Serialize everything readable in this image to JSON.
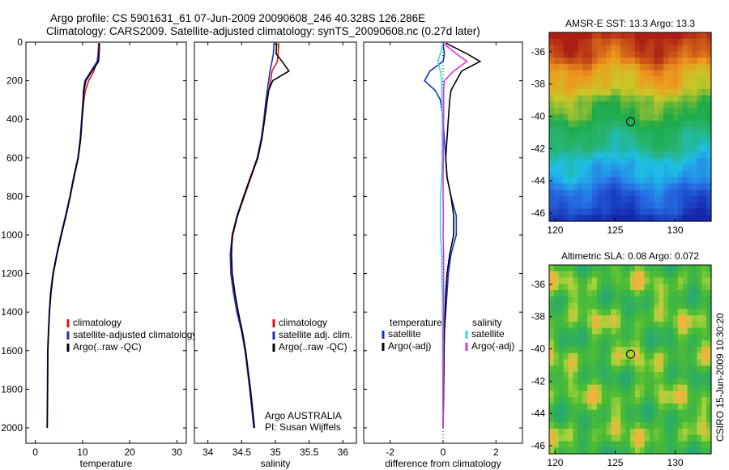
{
  "header": {
    "line1": "Argo profile: CS 5901631_61 07-Jun-2009 20090608_246 40.328S 126.286E",
    "line2": "Climatology: CARS2009. Satellite-adjusted climatology: synTS_20090608.nc (0.27d later)"
  },
  "colors": {
    "climatology": "#dd1111",
    "satellite": "#1a2ecc",
    "argo": "#000000",
    "sal_satellite": "#33dddd",
    "sal_argo": "#dd33dd"
  },
  "chart_data": [
    {
      "type": "line",
      "xlabel": "temperature",
      "ylabel": "",
      "xlim": [
        -2,
        32
      ],
      "ylim": [
        2080,
        0
      ],
      "xticks": [
        "0",
        "10",
        "20",
        "30"
      ],
      "yticks": [
        "0",
        "200",
        "400",
        "600",
        "800",
        "1000",
        "1200",
        "1400",
        "1600",
        "1800",
        "2000"
      ],
      "depth": [
        5,
        60,
        100,
        150,
        200,
        250,
        300,
        400,
        500,
        600,
        700,
        800,
        900,
        1000,
        1100,
        1200,
        1300,
        1400,
        1500,
        1600,
        1800,
        2000
      ],
      "series": [
        {
          "name": "climatology",
          "values": [
            13.4,
            13.3,
            13.1,
            12.4,
            11.3,
            10.6,
            10.3,
            9.9,
            9.6,
            9.1,
            8.2,
            7.4,
            6.5,
            5.5,
            4.6,
            3.8,
            3.3,
            3.0,
            2.8,
            2.65,
            2.6,
            2.55
          ]
        },
        {
          "name": "satellite-adjusted climatology",
          "values": [
            13.5,
            13.4,
            13.1,
            11.8,
            10.5,
            10.2,
            10.1,
            9.8,
            9.5,
            9.0,
            8.1,
            7.3,
            6.4,
            5.4,
            4.5,
            3.7,
            3.2,
            2.95,
            2.75,
            2.6,
            2.55,
            2.5
          ]
        },
        {
          "name": "Argo(..raw -QC)",
          "values": [
            13.6,
            13.5,
            13.4,
            12.0,
            10.7,
            10.3,
            10.2,
            9.9,
            9.6,
            9.1,
            8.2,
            7.4,
            6.5,
            5.5,
            4.6,
            3.8,
            3.3,
            3.0,
            2.8,
            2.65,
            2.6,
            2.5
          ]
        }
      ],
      "legend": {
        "placement": "lower-right",
        "entries": [
          "climatology",
          "satellite-adjusted climatology",
          "Argo(..raw -QC)"
        ]
      }
    },
    {
      "type": "line",
      "xlabel": "salinity",
      "xlim": [
        33.8,
        36.2
      ],
      "ylim": [
        2080,
        0
      ],
      "xticks": [
        "34",
        "34.5",
        "35",
        "35.5",
        "36"
      ],
      "depth": [
        5,
        60,
        100,
        150,
        200,
        250,
        300,
        400,
        500,
        600,
        700,
        800,
        900,
        1000,
        1100,
        1200,
        1300,
        1400,
        1500,
        1600,
        1800,
        2000
      ],
      "series": [
        {
          "name": "climatology",
          "values": [
            35.05,
            35.04,
            35.03,
            34.95,
            34.93,
            34.9,
            34.88,
            34.84,
            34.8,
            34.74,
            34.64,
            34.54,
            34.44,
            34.37,
            34.34,
            34.34,
            34.38,
            34.43,
            34.5,
            34.55,
            34.63,
            34.69
          ]
        },
        {
          "name": "satellite adj. clim.",
          "values": [
            34.98,
            34.97,
            34.95,
            34.92,
            34.9,
            34.88,
            34.86,
            34.83,
            34.79,
            34.73,
            34.63,
            34.53,
            34.43,
            34.36,
            34.33,
            34.34,
            34.38,
            34.43,
            34.5,
            34.55,
            34.62,
            34.68
          ]
        },
        {
          "name": "Argo(..raw -QC)",
          "values": [
            35.02,
            35.01,
            35.1,
            35.2,
            34.96,
            34.9,
            34.88,
            34.84,
            34.8,
            34.74,
            34.63,
            34.53,
            34.44,
            34.36,
            34.35,
            34.36,
            34.4,
            34.45,
            34.51,
            34.56,
            34.63,
            34.69
          ]
        }
      ],
      "legend": {
        "placement": "lower-right",
        "entries": [
          "climatology",
          "satellite adj. clim.",
          "Argo(..raw -QC)"
        ]
      },
      "annotations": [
        "Argo AUSTRALIA",
        "PI: Susan Wijffels"
      ]
    },
    {
      "type": "line",
      "xlabel": "difference from climatology",
      "xlim": [
        -3,
        3
      ],
      "ylim": [
        2080,
        0
      ],
      "xticks": [
        "-2",
        "0",
        "2"
      ],
      "depth": [
        5,
        60,
        100,
        150,
        200,
        250,
        300,
        400,
        500,
        600,
        700,
        800,
        900,
        1000,
        1100,
        1200,
        1300,
        1400,
        1500,
        1600,
        1800,
        2000
      ],
      "series": [
        {
          "name": "temperature satellite",
          "values": [
            0.0,
            0.05,
            0.0,
            -0.5,
            -0.7,
            -0.3,
            -0.1,
            0.0,
            0.05,
            0.1,
            0.15,
            0.3,
            0.5,
            0.5,
            0.3,
            0.2,
            0.15,
            0.1,
            0.05,
            0.03,
            0.02,
            0.0
          ]
        },
        {
          "name": "temperature Argo(-adj)",
          "values": [
            0.1,
            0.9,
            1.4,
            0.7,
            0.5,
            0.3,
            0.25,
            0.2,
            0.15,
            0.1,
            0.15,
            0.3,
            0.4,
            0.4,
            0.25,
            0.15,
            0.1,
            0.08,
            0.05,
            0.04,
            0.02,
            0.0
          ]
        },
        {
          "name": "salinity satellite",
          "values": [
            0.0,
            -0.1,
            -0.2,
            -0.1,
            -0.05,
            -0.05,
            -0.05,
            -0.03,
            -0.03,
            -0.03,
            -0.05,
            -0.1,
            -0.1,
            -0.1,
            -0.05,
            -0.05,
            -0.03,
            -0.02,
            -0.02,
            -0.02,
            -0.01,
            0.0
          ]
        },
        {
          "name": "salinity Argo(-adj)",
          "values": [
            0.0,
            0.5,
            0.9,
            0.4,
            0.05,
            0.02,
            0.02,
            0.02,
            0.01,
            0.01,
            0.0,
            0.0,
            0.01,
            0.0,
            0.02,
            0.02,
            0.02,
            0.02,
            0.01,
            0.01,
            0.0,
            0.0
          ]
        }
      ],
      "legend": {
        "placement": "lower-right",
        "headers": [
          "temperature",
          "salinity"
        ],
        "entries": [
          "satellite",
          "Argo(-adj)",
          "satellite",
          "Argo(-adj)"
        ]
      }
    },
    {
      "type": "heatmap",
      "title": "AMSR-E SST: 13.3 Argo: 13.3",
      "xlim": [
        119.5,
        133
      ],
      "ylim": [
        -46.5,
        -34.8
      ],
      "xticks": [
        "120",
        "125",
        "130"
      ],
      "yticks": [
        "-36",
        "-38",
        "-40",
        "-42",
        "-44",
        "-46"
      ],
      "marker": {
        "lon": 126.286,
        "lat": -40.328
      }
    },
    {
      "type": "heatmap",
      "title": "Altimetric SLA: 0.08 Argo: 0.072",
      "xlim": [
        119.5,
        133
      ],
      "ylim": [
        -46.5,
        -34.8
      ],
      "xticks": [
        "120",
        "125",
        "130"
      ],
      "yticks": [
        "-36",
        "-38",
        "-40",
        "-42",
        "-44",
        "-46"
      ],
      "marker": {
        "lon": 126.286,
        "lat": -40.328
      }
    }
  ],
  "footer": {
    "stamp": "CSIRO 15-Jun-2009 10:30:20"
  }
}
